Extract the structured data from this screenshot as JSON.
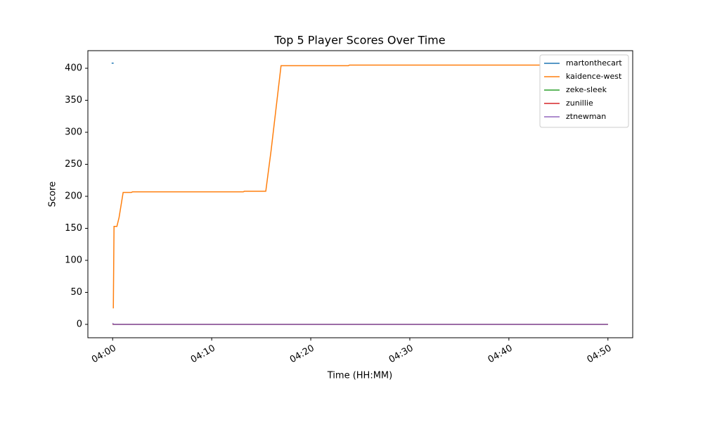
{
  "chart_data": {
    "type": "line",
    "title": "Top 5 Player Scores Over Time",
    "x_label": "Time (HH:MM)",
    "y_label": "Score",
    "xlim": [
      -2.5,
      52.5
    ],
    "ylim": [
      -20.9,
      427.5
    ],
    "xticks": [
      {
        "value": 0,
        "label": "04:00"
      },
      {
        "value": 10,
        "label": "04:10"
      },
      {
        "value": 20,
        "label": "04:20"
      },
      {
        "value": 30,
        "label": "04:30"
      },
      {
        "value": 40,
        "label": "04:40"
      },
      {
        "value": 50,
        "label": "04:50"
      }
    ],
    "yticks": [
      0,
      50,
      100,
      150,
      200,
      250,
      300,
      350,
      400
    ],
    "grid": false,
    "legend": "upper right",
    "series": [
      {
        "name": "martonthecart",
        "color": "#1f77b4",
        "x": [
          -0.1,
          0.1
        ],
        "values": [
          408,
          408
        ]
      },
      {
        "name": "kaidence-west",
        "color": "#ff7f0e",
        "x": [
          0.07,
          0.14,
          0.43,
          0.65,
          1.06,
          1.9,
          2.0,
          13.2,
          13.3,
          15.46,
          16.0,
          17.0,
          23.8,
          23.9,
          50
        ],
        "values": [
          25,
          153,
          153,
          167,
          206,
          206,
          207,
          207,
          208,
          208,
          272,
          404,
          404,
          405,
          405
        ]
      },
      {
        "name": "zeke-sleek",
        "color": "#2ca02c",
        "x": [
          0,
          50
        ],
        "values": [
          0,
          0
        ]
      },
      {
        "name": "zunillie",
        "color": "#d62728",
        "x": [
          0,
          50
        ],
        "values": [
          0,
          0
        ]
      },
      {
        "name": "ztnewman",
        "color": "#9467bd",
        "x": [
          0,
          0.1,
          50
        ],
        "values": [
          2,
          0,
          0
        ]
      }
    ]
  }
}
